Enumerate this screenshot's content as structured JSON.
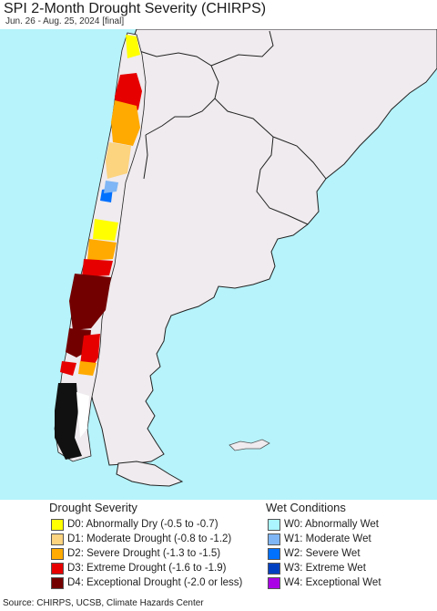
{
  "header": {
    "title": "SPI 2-Month Drought Severity (CHIRPS)",
    "subtitle": "Jun. 26 - Aug. 25, 2024 [final]"
  },
  "colors": {
    "ocean": "#b6f3fb",
    "land": "#efebee",
    "border": "#222222"
  },
  "legend": {
    "drought_title": "Drought Severity",
    "wet_title": "Wet Conditions",
    "drought": [
      {
        "label": "D0: Abnormally Dry (-0.5 to -0.7)",
        "color": "#ffff00"
      },
      {
        "label": "D1: Moderate Drought (-0.8 to -1.2)",
        "color": "#fcd37f"
      },
      {
        "label": "D2: Severe Drought (-1.3 to -1.5)",
        "color": "#ffaa00"
      },
      {
        "label": "D3: Extreme Drought (-1.6 to -1.9)",
        "color": "#e60000"
      },
      {
        "label": "D4: Exceptional Drought (-2.0 or less)",
        "color": "#730000"
      }
    ],
    "wet": [
      {
        "label": "W0: Abnormally Wet",
        "color": "#aaf5ff"
      },
      {
        "label": "W1: Moderate Wet",
        "color": "#7fb6f5"
      },
      {
        "label": "W2: Severe Wet",
        "color": "#0070ff"
      },
      {
        "label": "W3: Extreme Wet",
        "color": "#0040c0"
      },
      {
        "label": "W4: Exceptional Wet",
        "color": "#a900e6"
      }
    ]
  },
  "footer": {
    "source": "Source: CHIRPS, UCSB, Climate Hazards Center"
  }
}
